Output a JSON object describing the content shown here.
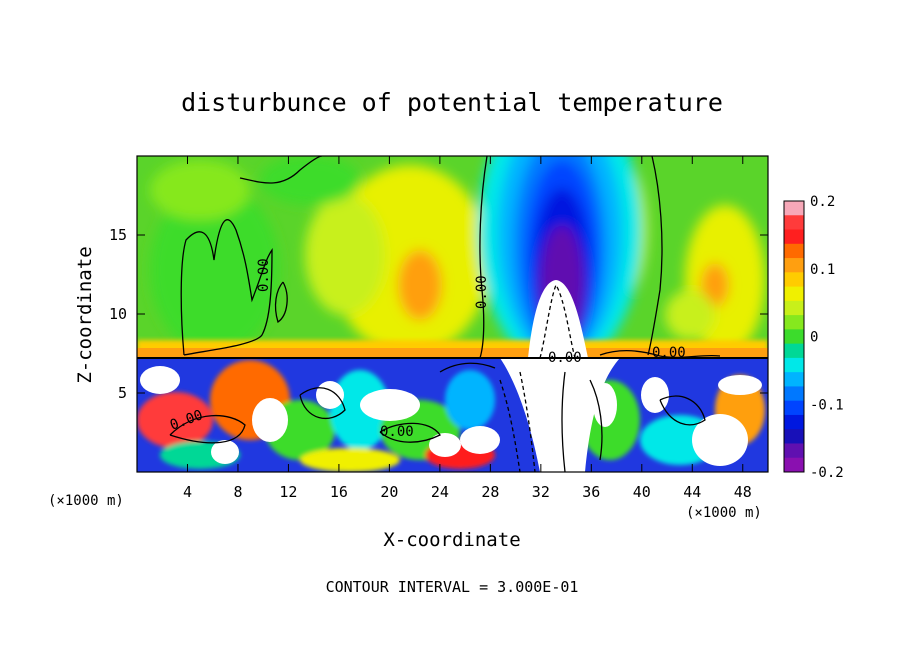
{
  "chart_data": {
    "type": "heatmap",
    "title": "disturbunce of potential temperature",
    "xlabel": "X-coordinate",
    "ylabel": "Z-coordinate",
    "x_unit": "(×1000 m)",
    "z_unit": "(×1000 m)",
    "xlim": [
      0,
      50
    ],
    "ylim": [
      0,
      20
    ],
    "x_ticks": [
      4,
      8,
      12,
      16,
      20,
      24,
      28,
      32,
      36,
      40,
      44,
      48
    ],
    "y_ticks": [
      5,
      10,
      15
    ],
    "colorbar": {
      "range": [
        -0.2,
        0.2
      ],
      "tick_labels": [
        "0.2",
        "0.1",
        "0",
        "-0.1",
        "-0.2"
      ],
      "colors": [
        "#f7a8b8",
        "#ff3b3b",
        "#ff1f1f",
        "#ff6a00",
        "#ff9f10",
        "#ffcc00",
        "#f0f000",
        "#c8f01a",
        "#86e81e",
        "#3cdc2c",
        "#00d896",
        "#00e8e8",
        "#00b4ff",
        "#0078ff",
        "#0044ff",
        "#0018e0",
        "#1810b8",
        "#6010b0",
        "#8a10b0"
      ]
    },
    "contour_labels": [
      "0.00",
      "0.00",
      "0.00",
      "0.00",
      "0.00",
      "0.00"
    ],
    "footer": "CONTOUR INTERVAL = 3.000E-01"
  }
}
